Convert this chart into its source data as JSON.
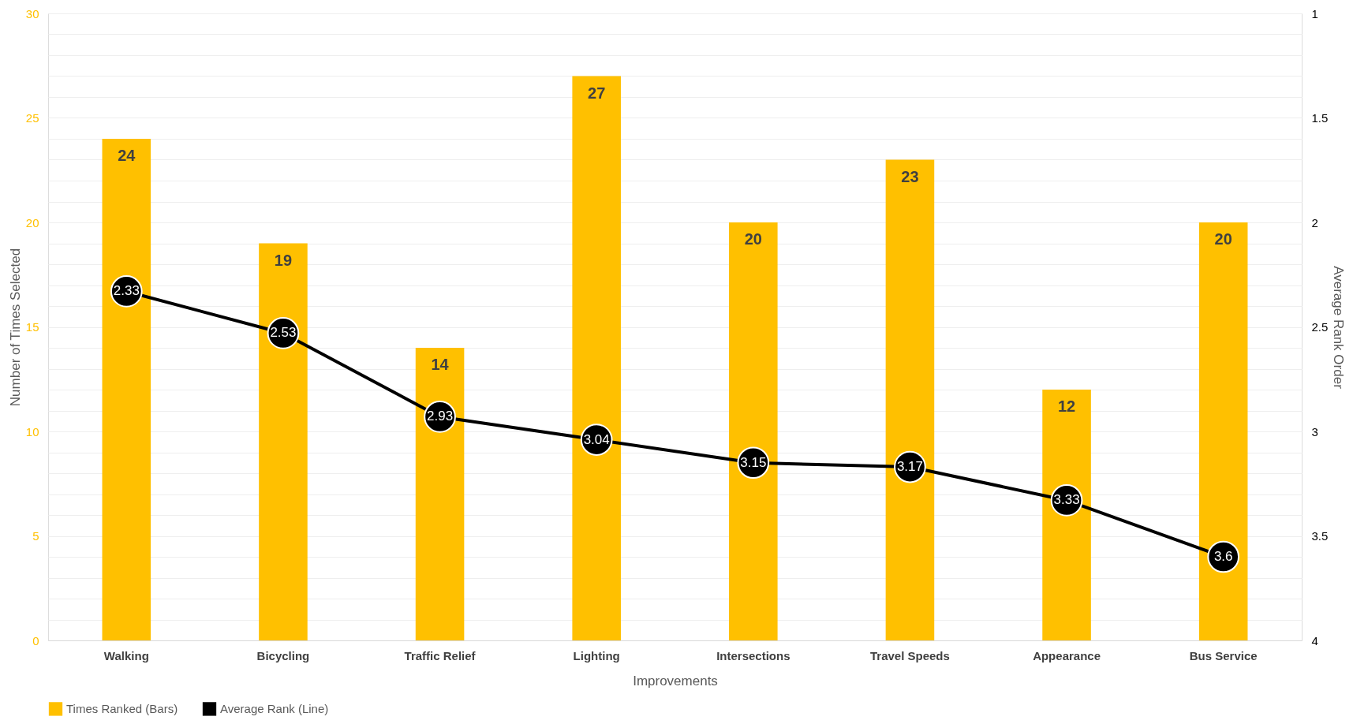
{
  "chart_data": {
    "type": "bar",
    "xlabel": "Improvements",
    "ylabel": "Number of Times Selected",
    "y2label": "Average Rank Order",
    "categories": [
      "Walking",
      "Bicycling",
      "Traffic Relief",
      "Lighting",
      "Intersections",
      "Travel Speeds",
      "Appearance",
      "Bus Service"
    ],
    "series": [
      {
        "name": "Times Ranked (Bars)",
        "color": "#ffc000",
        "values": [
          24,
          19,
          14,
          27,
          20,
          23,
          12,
          20
        ]
      },
      {
        "name": "Average Rank (Line)",
        "color": "#000000",
        "type": "line",
        "axis": "y2",
        "marker": "circle",
        "values": [
          2.33,
          2.53,
          2.93,
          3.04,
          3.15,
          3.17,
          3.33,
          3.6
        ]
      }
    ],
    "ylim": [
      0,
      30
    ],
    "yticks": [
      0,
      {
        "value": 1,
        "label": null
      },
      {
        "value": 2,
        "label": null
      },
      {
        "value": 3,
        "label": null
      },
      {
        "value": 4,
        "label": null
      },
      5,
      {
        "value": 6,
        "label": null
      },
      {
        "value": 7,
        "label": null
      },
      {
        "value": 8,
        "label": null
      },
      {
        "value": 9,
        "label": null
      },
      10,
      {
        "value": 11,
        "label": null
      },
      {
        "value": 12,
        "label": null
      },
      {
        "value": 13,
        "label": null
      },
      {
        "value": 14,
        "label": null
      },
      15,
      {
        "value": 16,
        "label": null
      },
      {
        "value": 17,
        "label": null
      },
      {
        "value": 18,
        "label": null
      },
      {
        "value": 19,
        "label": null
      },
      20,
      {
        "value": 21,
        "label": null
      },
      {
        "value": 22,
        "label": null
      },
      {
        "value": 23,
        "label": null
      },
      {
        "value": 24,
        "label": null
      },
      25,
      {
        "value": 26,
        "label": null
      },
      {
        "value": 27,
        "label": null
      },
      {
        "value": 28,
        "label": null
      },
      {
        "value": 29,
        "label": null
      },
      30
    ],
    "y2lim": [
      4,
      1
    ],
    "y2ticks": [
      1,
      1.5,
      2,
      2.5,
      3,
      3.5,
      4
    ],
    "grid": "y",
    "legend": "bottom",
    "data_labels": true,
    "line_style": "solid"
  }
}
